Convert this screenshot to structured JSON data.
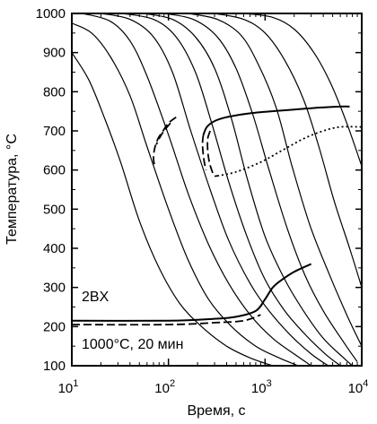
{
  "chart_data": {
    "type": "line",
    "xlabel": "Время, с",
    "ylabel": "Температура, °С",
    "x_scale": "log",
    "xlim": [
      10,
      10000
    ],
    "ylim": [
      100,
      1000
    ],
    "x_ticks": [
      {
        "value": 10,
        "base": "10",
        "exp": "1"
      },
      {
        "value": 100,
        "base": "10",
        "exp": "2"
      },
      {
        "value": 1000,
        "base": "10",
        "exp": "3"
      },
      {
        "value": 10000,
        "base": "10",
        "exp": "4"
      }
    ],
    "y_ticks": [
      100,
      200,
      300,
      400,
      500,
      600,
      700,
      800,
      900,
      1000
    ],
    "annotations": [
      {
        "text": "2BX",
        "x": 16,
        "y": 320
      },
      {
        "text": "1000°С, 20 мин",
        "x": 15,
        "y": 157
      }
    ],
    "cooling_curves": [
      [
        [
          10,
          900
        ],
        [
          15,
          830
        ],
        [
          22,
          730
        ],
        [
          32,
          620
        ],
        [
          50,
          470
        ],
        [
          80,
          350
        ],
        [
          130,
          260
        ],
        [
          220,
          200
        ],
        [
          400,
          150
        ],
        [
          700,
          120
        ],
        [
          1200,
          100
        ]
      ],
      [
        [
          10,
          975
        ],
        [
          16,
          950
        ],
        [
          25,
          890
        ],
        [
          40,
          790
        ],
        [
          60,
          660
        ],
        [
          100,
          500
        ],
        [
          160,
          370
        ],
        [
          260,
          270
        ],
        [
          450,
          200
        ],
        [
          800,
          150
        ],
        [
          1400,
          120
        ],
        [
          2200,
          100
        ]
      ],
      [
        [
          13,
          1000
        ],
        [
          25,
          980
        ],
        [
          40,
          930
        ],
        [
          60,
          840
        ],
        [
          100,
          690
        ],
        [
          160,
          540
        ],
        [
          260,
          410
        ],
        [
          420,
          310
        ],
        [
          700,
          230
        ],
        [
          1200,
          170
        ],
        [
          2000,
          130
        ],
        [
          3000,
          100
        ]
      ],
      [
        [
          20,
          1000
        ],
        [
          40,
          985
        ],
        [
          70,
          940
        ],
        [
          110,
          850
        ],
        [
          170,
          700
        ],
        [
          270,
          550
        ],
        [
          420,
          420
        ],
        [
          700,
          310
        ],
        [
          1100,
          240
        ],
        [
          1800,
          180
        ],
        [
          3000,
          130
        ],
        [
          4500,
          100
        ]
      ],
      [
        [
          33,
          1000
        ],
        [
          70,
          985
        ],
        [
          120,
          940
        ],
        [
          190,
          850
        ],
        [
          280,
          720
        ],
        [
          420,
          570
        ],
        [
          650,
          430
        ],
        [
          1000,
          320
        ],
        [
          1600,
          240
        ],
        [
          2600,
          180
        ],
        [
          4200,
          130
        ],
        [
          6000,
          100
        ]
      ],
      [
        [
          55,
          1000
        ],
        [
          110,
          985
        ],
        [
          190,
          940
        ],
        [
          300,
          860
        ],
        [
          450,
          730
        ],
        [
          650,
          580
        ],
        [
          1000,
          430
        ],
        [
          1600,
          320
        ],
        [
          2500,
          240
        ],
        [
          4000,
          170
        ],
        [
          6500,
          120
        ],
        [
          8000,
          100
        ]
      ],
      [
        [
          90,
          1000
        ],
        [
          180,
          985
        ],
        [
          320,
          940
        ],
        [
          500,
          860
        ],
        [
          750,
          740
        ],
        [
          1100,
          600
        ],
        [
          1700,
          450
        ],
        [
          2600,
          330
        ],
        [
          4000,
          240
        ],
        [
          6500,
          160
        ],
        [
          9000,
          110
        ]
      ],
      [
        [
          160,
          1000
        ],
        [
          320,
          985
        ],
        [
          560,
          945
        ],
        [
          850,
          870
        ],
        [
          1300,
          760
        ],
        [
          1900,
          610
        ],
        [
          2900,
          460
        ],
        [
          4500,
          340
        ],
        [
          7000,
          230
        ],
        [
          10000,
          150
        ]
      ],
      [
        [
          300,
          1000
        ],
        [
          600,
          985
        ],
        [
          1000,
          950
        ],
        [
          1600,
          880
        ],
        [
          2500,
          780
        ],
        [
          3600,
          660
        ],
        [
          5200,
          520
        ],
        [
          7500,
          400
        ],
        [
          10000,
          300
        ]
      ],
      [
        [
          600,
          1000
        ],
        [
          1200,
          990
        ],
        [
          2000,
          960
        ],
        [
          3200,
          900
        ],
        [
          4800,
          820
        ],
        [
          7000,
          720
        ],
        [
          10000,
          610
        ]
      ]
    ],
    "transformation_lines": [
      {
        "style": "solid",
        "points": [
          [
            230,
            690
          ],
          [
            250,
            710
          ],
          [
            300,
            725
          ],
          [
            400,
            735
          ],
          [
            700,
            745
          ],
          [
            1500,
            752
          ],
          [
            3000,
            758
          ],
          [
            6000,
            762
          ],
          [
            7500,
            762
          ]
        ]
      },
      {
        "style": "dashed",
        "points": [
          [
            230,
            690
          ],
          [
            225,
            670
          ],
          [
            228,
            645
          ],
          [
            235,
            620
          ],
          [
            245,
            600
          ]
        ]
      },
      {
        "style": "dashed",
        "points": [
          [
            270,
            700
          ],
          [
            255,
            680
          ],
          [
            255,
            650
          ],
          [
            265,
            620
          ],
          [
            285,
            595
          ],
          [
            300,
            585
          ],
          [
            320,
            585
          ]
        ]
      },
      {
        "style": "dotted",
        "points": [
          [
            320,
            585
          ],
          [
            500,
            595
          ],
          [
            900,
            620
          ],
          [
            1500,
            650
          ],
          [
            2500,
            680
          ],
          [
            4000,
            700
          ],
          [
            6000,
            710
          ],
          [
            10000,
            710
          ]
        ]
      },
      {
        "style": "dashed",
        "points": [
          [
            120,
            735
          ],
          [
            100,
            720
          ],
          [
            88,
            700
          ],
          [
            78,
            680
          ],
          [
            72,
            655
          ],
          [
            70,
            630
          ],
          [
            72,
            610
          ]
        ]
      },
      {
        "style": "dashed",
        "points": [
          [
            105,
            720
          ],
          [
            90,
            700
          ],
          [
            80,
            680
          ],
          [
            75,
            665
          ]
        ]
      },
      {
        "style": "solid",
        "points": [
          [
            10,
            215
          ],
          [
            100,
            215
          ],
          [
            300,
            220
          ],
          [
            500,
            225
          ],
          [
            800,
            240
          ],
          [
            1000,
            270
          ],
          [
            1200,
            300
          ],
          [
            1500,
            320
          ],
          [
            2000,
            340
          ],
          [
            3000,
            360
          ]
        ]
      },
      {
        "style": "dashed",
        "points": [
          [
            10,
            205
          ],
          [
            100,
            205
          ],
          [
            300,
            210
          ],
          [
            600,
            215
          ],
          [
            900,
            230
          ]
        ]
      }
    ]
  }
}
